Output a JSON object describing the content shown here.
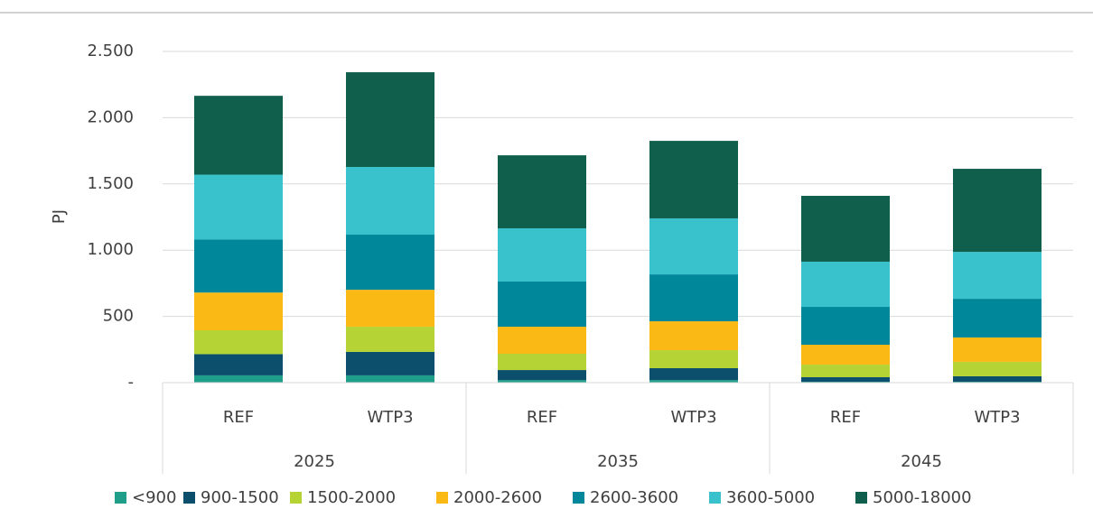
{
  "chart_data": {
    "type": "stacked_bar",
    "y_label": "PJ",
    "categories": [
      "REF",
      "WTP3",
      "REF",
      "WTP3",
      "REF",
      "WTP3"
    ],
    "groups": [
      "2025",
      "2035",
      "2045"
    ],
    "ylim": [
      0,
      2500
    ],
    "yticks": [
      {
        "value": 0,
        "label": "-"
      },
      500,
      {
        "value": 1000,
        "label": "1.000"
      },
      {
        "value": 1500,
        "label": "1.500"
      },
      {
        "value": 2000,
        "label": "2.000"
      },
      {
        "value": 2500,
        "label": "2.500"
      }
    ],
    "grid": true,
    "legend": "bottom",
    "series": [
      {
        "name": "<900",
        "color": "#1f9e89",
        "values": [
          55,
          55,
          20,
          20,
          7,
          7
        ]
      },
      {
        "name": "900-1500",
        "color": "#0b4f6c",
        "values": [
          160,
          177,
          75,
          89,
          34,
          41
        ]
      },
      {
        "name": "1500-2000",
        "color": "#b5d334",
        "values": [
          180,
          190,
          123,
          136,
          95,
          109
        ]
      },
      {
        "name": "2000-2600",
        "color": "#fbb915",
        "values": [
          285,
          279,
          204,
          218,
          150,
          184
        ]
      },
      {
        "name": "2600-3600",
        "color": "#00879a",
        "values": [
          400,
          416,
          341,
          354,
          286,
          292
        ]
      },
      {
        "name": "3600-5000",
        "color": "#3ac2cc",
        "values": [
          490,
          511,
          402,
          423,
          341,
          354
        ]
      },
      {
        "name": "5000-18000",
        "color": "#105e4c",
        "values": [
          595,
          715,
          551,
          585,
          497,
          627
        ]
      }
    ]
  }
}
